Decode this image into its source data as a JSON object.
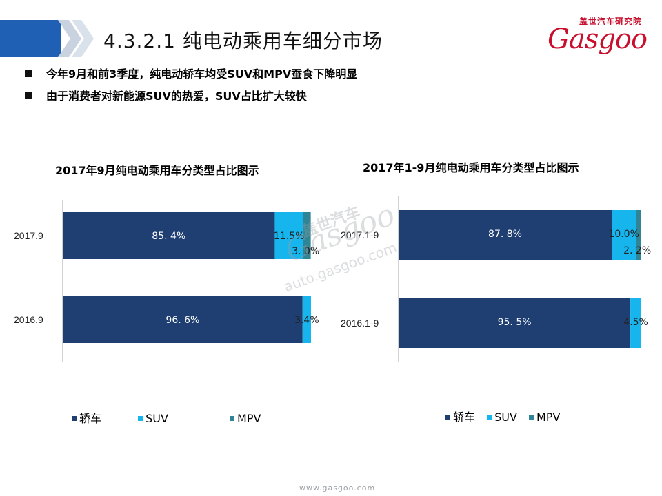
{
  "header": {
    "title": "4.3.2.1   纯电动乘用车细分市场"
  },
  "logo": {
    "cn": "盖世汽车研究院",
    "en": "Gasgoo"
  },
  "bullets": [
    "今年9月和前3季度，纯电动轿车均受SUV和MPV蚕食下降明显",
    "由于消费者对新能源SUV的热爱，SUV占比扩大较快"
  ],
  "colors": {
    "sedan": "#1f3f73",
    "suv": "#16b5ee",
    "mpv": "#2f8595",
    "header_blue": "#1f5fb4",
    "logo_red": "#c8102e"
  },
  "watermark": {
    "cn": "盖世汽车",
    "logo": "Gasgoo",
    "url": "auto.gasgoo.com"
  },
  "footer": {
    "url": "www.gasgoo.com"
  },
  "chart_data": [
    {
      "type": "bar",
      "orientation": "horizontal",
      "stacked": "percent",
      "title": "2017年9月纯电动乘用车分类型占比图示",
      "categories": [
        "2017.9",
        "2016.9"
      ],
      "series": [
        {
          "name": "轿车",
          "values": [
            85.4,
            96.6
          ],
          "labels": [
            "85. 4%",
            "96. 6%"
          ]
        },
        {
          "name": "SUV",
          "values": [
            11.5,
            3.4
          ],
          "labels": [
            "11.5%",
            "3.4%"
          ]
        },
        {
          "name": "MPV",
          "values": [
            3.0,
            0
          ],
          "labels": [
            "3. 0%",
            ""
          ]
        }
      ],
      "legend": "bottom",
      "grid": false
    },
    {
      "type": "bar",
      "orientation": "horizontal",
      "stacked": "percent",
      "title": "2017年1-9月纯电动乘用车分类型占比图示",
      "categories": [
        "2017.1-9",
        "2016.1-9"
      ],
      "series": [
        {
          "name": "轿车",
          "values": [
            87.8,
            95.5
          ],
          "labels": [
            "87. 8%",
            "95. 5%"
          ]
        },
        {
          "name": "SUV",
          "values": [
            10.0,
            4.5
          ],
          "labels": [
            "10.0%",
            "4.5%"
          ]
        },
        {
          "name": "MPV",
          "values": [
            2.2,
            0
          ],
          "labels": [
            "2. 2%",
            ""
          ]
        }
      ],
      "legend": "bottom",
      "grid": false
    }
  ]
}
